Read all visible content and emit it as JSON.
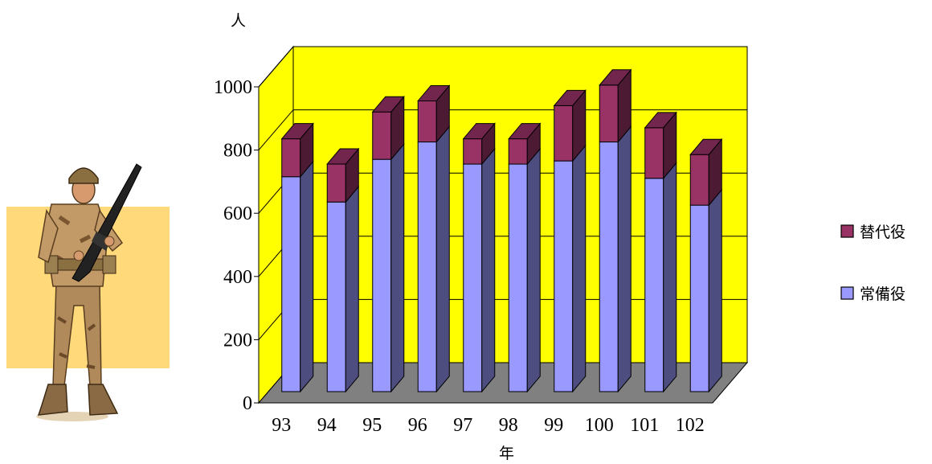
{
  "chart_data": {
    "type": "bar",
    "stacked": true,
    "three_d": true,
    "ylabel": "人",
    "xlabel": "年",
    "ylim": [
      0,
      1000
    ],
    "yticks": [
      0,
      200,
      400,
      600,
      800,
      1000
    ],
    "grid": true,
    "legend_position": "right",
    "categories": [
      "93",
      "94",
      "95",
      "96",
      "97",
      "98",
      "99",
      "100",
      "101",
      "102"
    ],
    "series": [
      {
        "name": "常備役",
        "color": "#9999ff",
        "values": [
          680,
          600,
          735,
          790,
          720,
          720,
          730,
          790,
          675,
          590
        ]
      },
      {
        "name": "替代役",
        "color": "#993366",
        "values": [
          120,
          120,
          150,
          130,
          80,
          80,
          175,
          180,
          160,
          160
        ]
      }
    ],
    "back_wall_color": "#ffff00",
    "floor_color": "#808080"
  },
  "illustration": {
    "icon": "soldier-icon",
    "background_color": "#ffd97a"
  }
}
